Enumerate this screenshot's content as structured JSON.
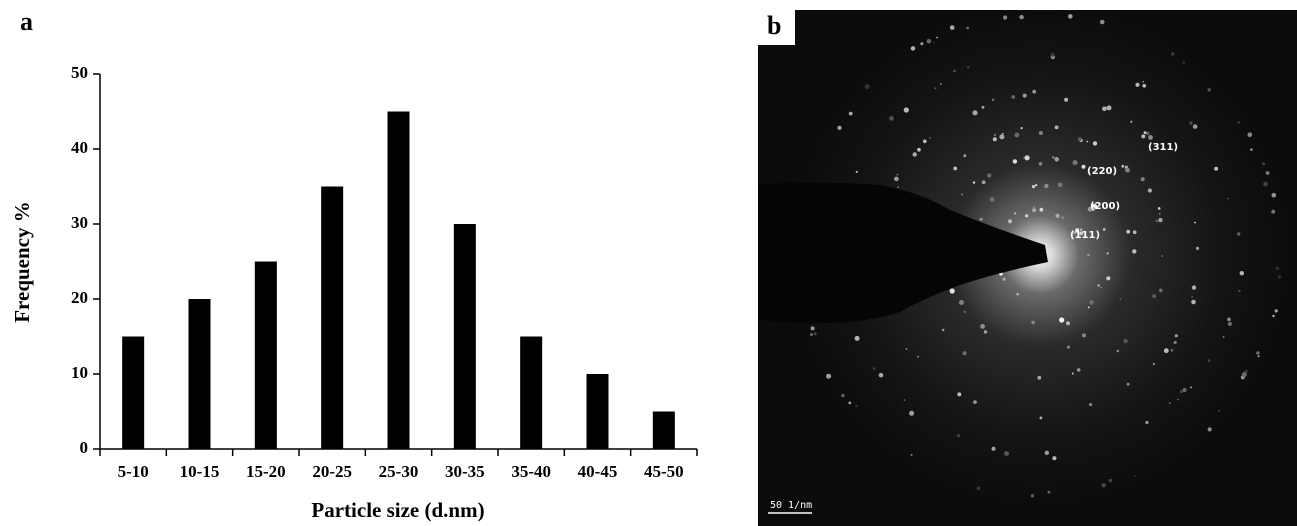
{
  "chart_data": {
    "type": "bar",
    "panel_label": "a",
    "x_label": "Particle size (d.nm)",
    "y_label": "Frequency %",
    "categories": [
      "5-10",
      "10-15",
      "15-20",
      "20-25",
      "25-30",
      "30-35",
      "35-40",
      "40-45",
      "45-50"
    ],
    "values": [
      15,
      20,
      25,
      35,
      45,
      30,
      15,
      10,
      5
    ],
    "color": "#000000",
    "ylim": [
      0,
      50
    ],
    "yticks": [
      0,
      10,
      20,
      30,
      40,
      50
    ],
    "grid": false
  },
  "image": {
    "panel_label": "b",
    "ring_labels": [
      "(111)",
      "(200)",
      "(220)",
      "(311)"
    ],
    "scale_bar": "50 1/nm"
  }
}
